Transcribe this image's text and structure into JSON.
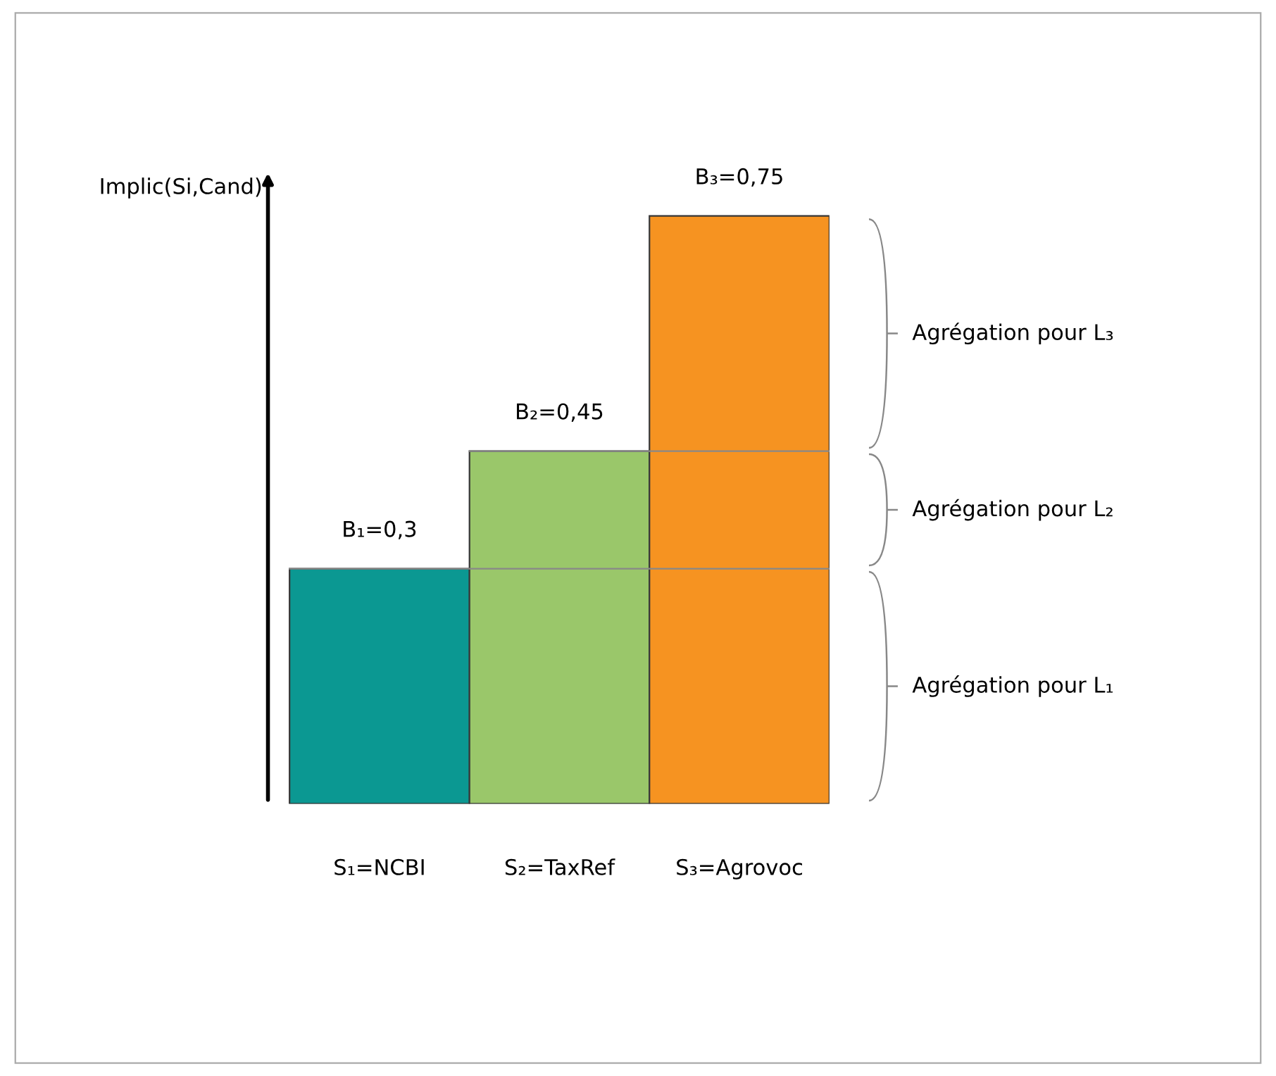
{
  "chart_data": {
    "type": "bar",
    "ylabel": "Implic(Si,Cand)",
    "categories": [
      "S₁=NCBI",
      "S₂=TaxRef",
      "S₃=Agrovoc"
    ],
    "values": [
      0.3,
      0.45,
      0.75
    ],
    "colors": [
      "#009a93",
      "#9ccc68",
      "#ff9418"
    ],
    "value_labels": [
      "B₁=0,3",
      "B₂=0,45",
      "B₃=0,75"
    ],
    "bands": [
      {
        "axis": "y",
        "from": 0,
        "to": 0.3,
        "label": "Agrégation pour L₁",
        "color": "#888888"
      },
      {
        "axis": "y",
        "from": 0.3,
        "to": 0.45,
        "label": "Agrégation pour L₂",
        "color": "#888888"
      },
      {
        "axis": "y",
        "from": 0.45,
        "to": 0.75,
        "label": "Agrégation pour L₃",
        "color": "#888888"
      }
    ],
    "ref_lines": [
      {
        "axis": "y",
        "value": 0.3,
        "color": "#888888"
      },
      {
        "axis": "y",
        "value": 0.45,
        "color": "#888888"
      }
    ],
    "grid": false
  }
}
